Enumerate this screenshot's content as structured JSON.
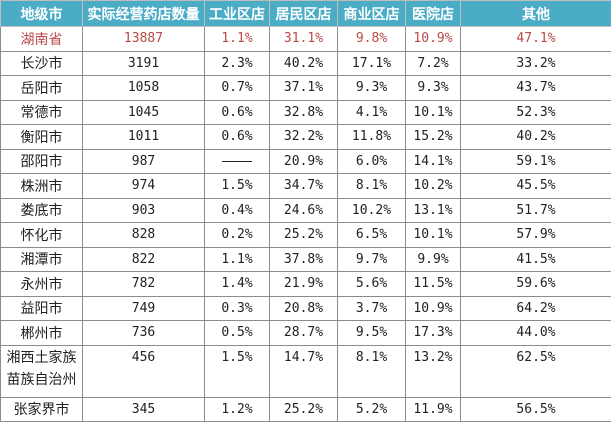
{
  "headers": [
    "地级市",
    "实际经营药店数量",
    "工业区店",
    "居民区店",
    "商业区店",
    "医院店",
    "其他"
  ],
  "colors": {
    "header_bg": "#4bacc6",
    "province_text": "#b94a48"
  },
  "rows": [
    [
      "湖南省",
      "13887",
      "1.1%",
      "31.1%",
      "9.8%",
      "10.9%",
      "47.1%"
    ],
    [
      "长沙市",
      "3191",
      "2.3%",
      "40.2%",
      "17.1%",
      "7.2%",
      "33.2%"
    ],
    [
      "岳阳市",
      "1058",
      "0.7%",
      "37.1%",
      "9.3%",
      "9.3%",
      "43.7%"
    ],
    [
      "常德市",
      "1045",
      "0.6%",
      "32.8%",
      "4.1%",
      "10.1%",
      "52.3%"
    ],
    [
      "衡阳市",
      "1011",
      "0.6%",
      "32.2%",
      "11.8%",
      "15.2%",
      "40.2%"
    ],
    [
      "邵阳市",
      "987",
      "——",
      "20.9%",
      "6.0%",
      "14.1%",
      "59.1%"
    ],
    [
      "株洲市",
      "974",
      "1.5%",
      "34.7%",
      "8.1%",
      "10.2%",
      "45.5%"
    ],
    [
      "娄底市",
      "903",
      "0.4%",
      "24.6%",
      "10.2%",
      "13.1%",
      "51.7%"
    ],
    [
      "怀化市",
      "828",
      "0.2%",
      "25.2%",
      "6.5%",
      "10.1%",
      "57.9%"
    ],
    [
      "湘潭市",
      "822",
      "1.1%",
      "37.8%",
      "9.7%",
      "9.9%",
      "41.5%"
    ],
    [
      "永州市",
      "782",
      "1.4%",
      "21.9%",
      "5.6%",
      "11.5%",
      "59.6%"
    ],
    [
      "益阳市",
      "749",
      "0.3%",
      "20.8%",
      "3.7%",
      "10.9%",
      "64.2%"
    ],
    [
      "郴州市",
      "736",
      "0.5%",
      "28.7%",
      "9.5%",
      "17.3%",
      "44.0%"
    ],
    [
      "湘西土家族苗族自治州",
      "456",
      "1.5%",
      "14.7%",
      "8.1%",
      "13.2%",
      "62.5%"
    ],
    [
      "张家界市",
      "345",
      "1.2%",
      "25.2%",
      "5.2%",
      "11.9%",
      "56.5%"
    ]
  ]
}
